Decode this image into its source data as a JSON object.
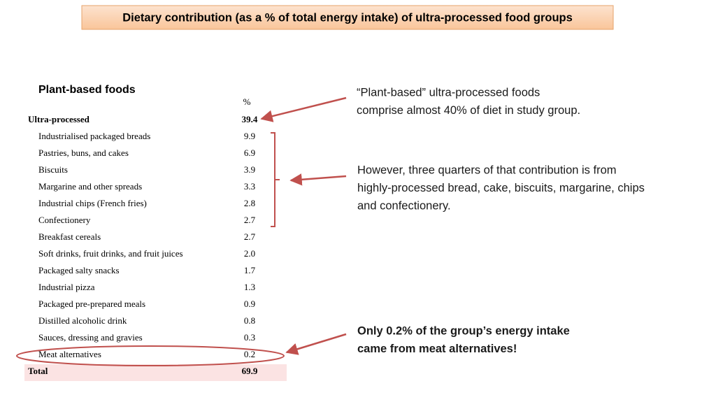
{
  "title": "Dietary contribution  (as a % of total energy intake) of ultra-processed  food groups",
  "table": {
    "heading": "Plant-based foods",
    "column": "%",
    "rows": [
      [
        "Ultra-processed",
        "39.4"
      ],
      [
        "Industrialised packaged breads",
        "9.9"
      ],
      [
        "Pastries, buns, and cakes",
        "6.9"
      ],
      [
        "Biscuits",
        "3.9"
      ],
      [
        "Margarine and other spreads",
        "3.3"
      ],
      [
        "Industrial chips (French fries)",
        "2.8"
      ],
      [
        "Confectionery",
        "2.7"
      ],
      [
        "Breakfast cereals",
        "2.7"
      ],
      [
        "Soft drinks, fruit drinks, and fruit juices",
        "2.0"
      ],
      [
        "Packaged salty snacks",
        "1.7"
      ],
      [
        "Industrial pizza",
        "1.3"
      ],
      [
        "Packaged pre-prepared meals",
        "0.9"
      ],
      [
        "Distilled alcoholic drink",
        "0.8"
      ],
      [
        "Sauces, dressing and gravies",
        "0.3"
      ],
      [
        "Meat alternatives",
        "0.2"
      ],
      [
        "Total",
        "69.9"
      ]
    ]
  },
  "annotations": [
    {
      "lines": [
        "“Plant-based”  ultra-processed foods",
        "comprise almost 40% of diet in study group."
      ]
    },
    {
      "lines": [
        "However, three quarters of that contribution is from",
        "highly-processed bread, cake, biscuits, margarine, chips",
        "and confectionery."
      ]
    },
    {
      "lines": [
        "Only 0.2% of the group’s energy intake",
        "came from meat alternatives!"
      ]
    }
  ]
}
